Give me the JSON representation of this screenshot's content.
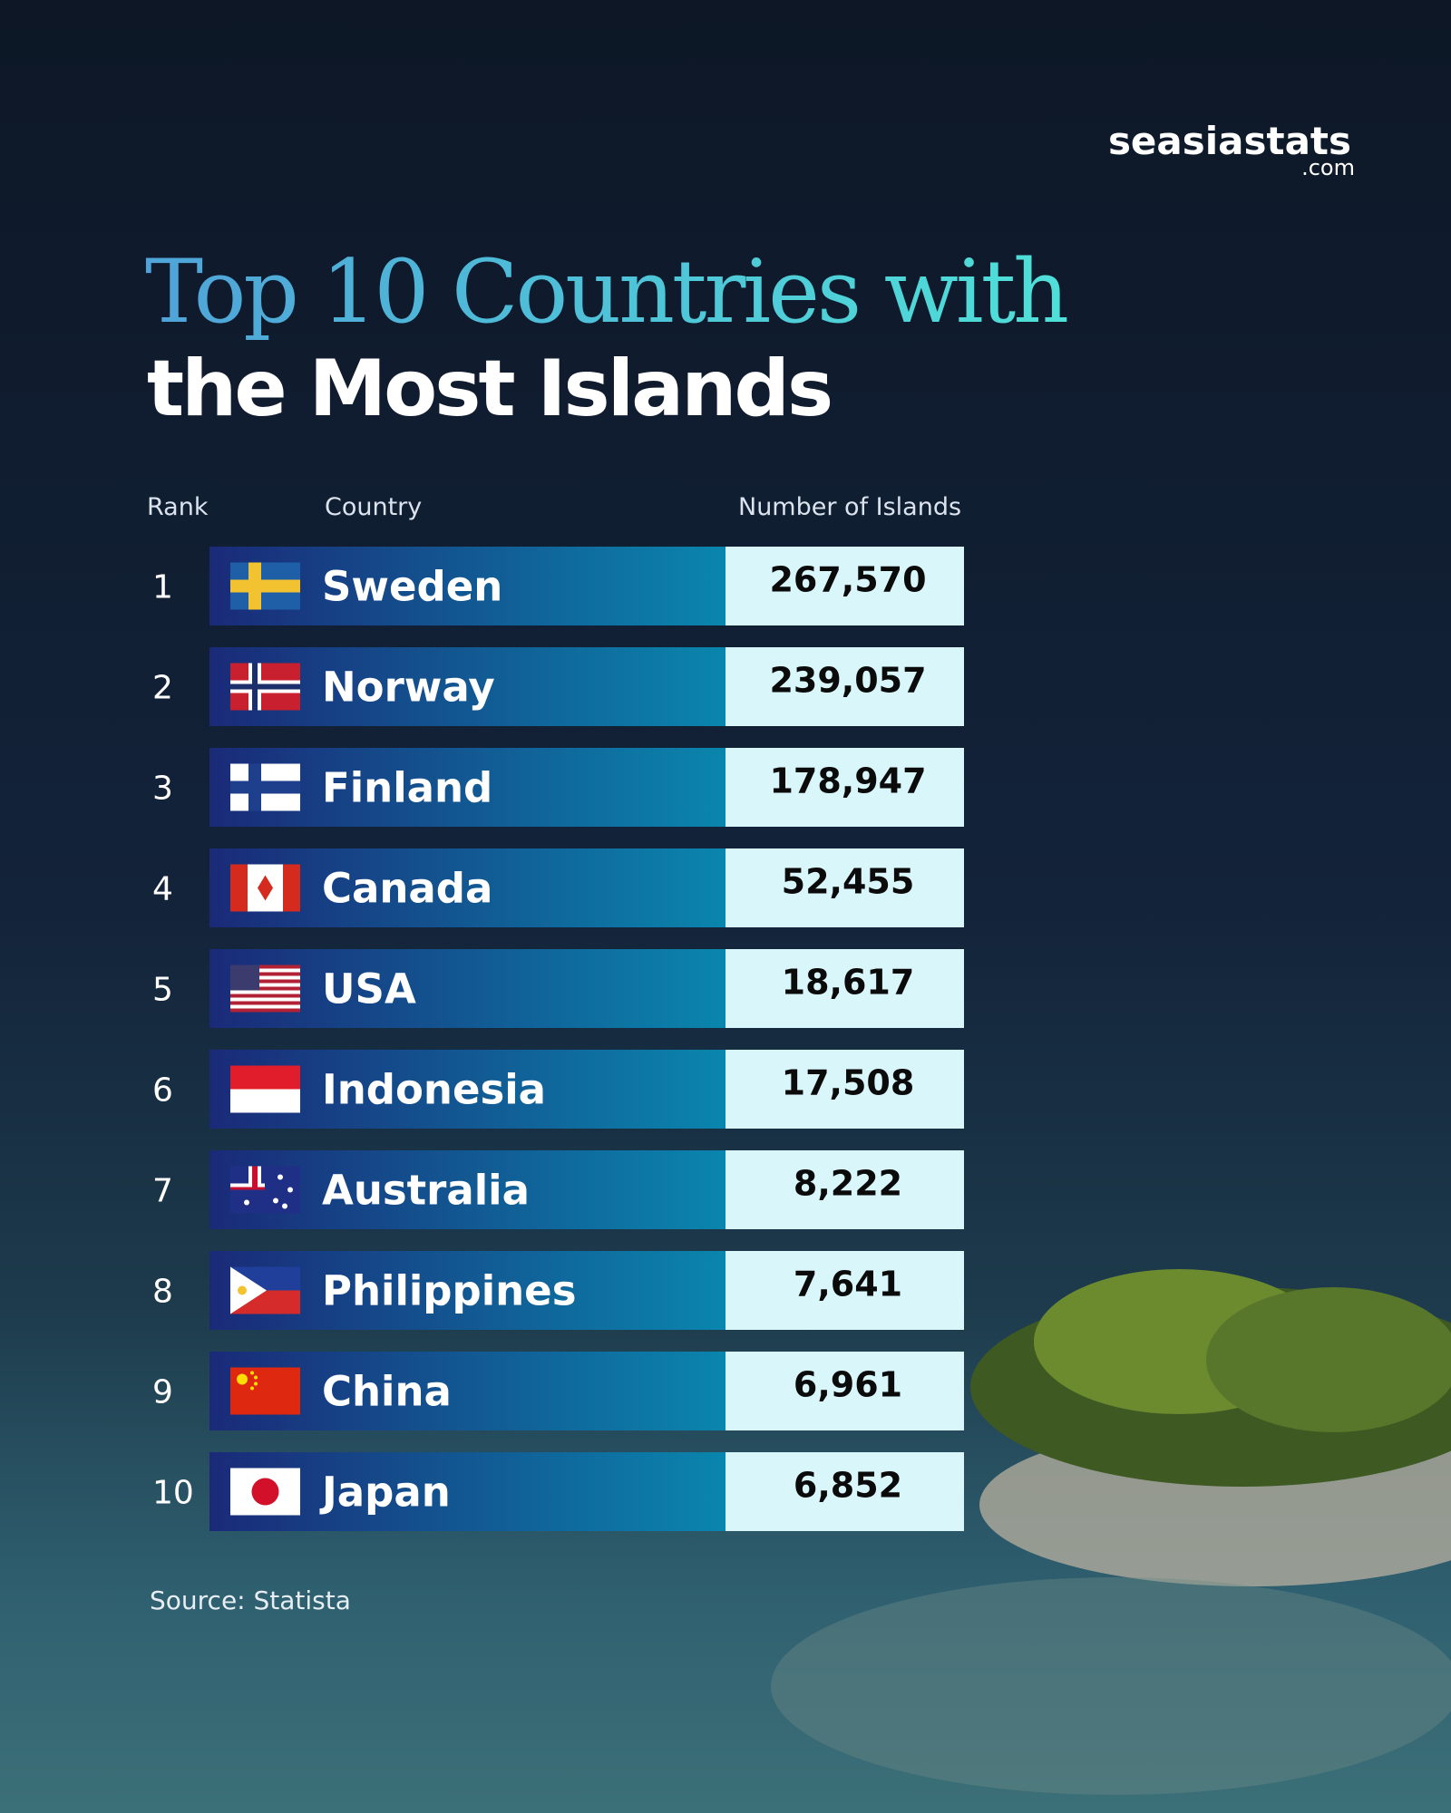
{
  "brand": {
    "name": "seasiastats",
    "suffix": ".com"
  },
  "title": {
    "line1": "Top 10 Countries with",
    "line2": "the Most Islands"
  },
  "table": {
    "columns": [
      "Rank",
      "Country",
      "Number of Islands"
    ],
    "rows": [
      [
        "1",
        "Sweden",
        "267,570"
      ],
      [
        "2",
        "Norway",
        "239,057"
      ],
      [
        "3",
        "Finland",
        "178,947"
      ],
      [
        "4",
        "Canada",
        "52,455"
      ],
      [
        "5",
        "USA",
        "18,617"
      ],
      [
        "6",
        "Indonesia",
        "17,508"
      ],
      [
        "7",
        "Australia",
        "8,222"
      ],
      [
        "8",
        "Philippines",
        "7,641"
      ],
      [
        "9",
        "China",
        "6,961"
      ],
      [
        "10",
        "Japan",
        "6,852"
      ]
    ]
  },
  "source": "Source: Statista"
}
